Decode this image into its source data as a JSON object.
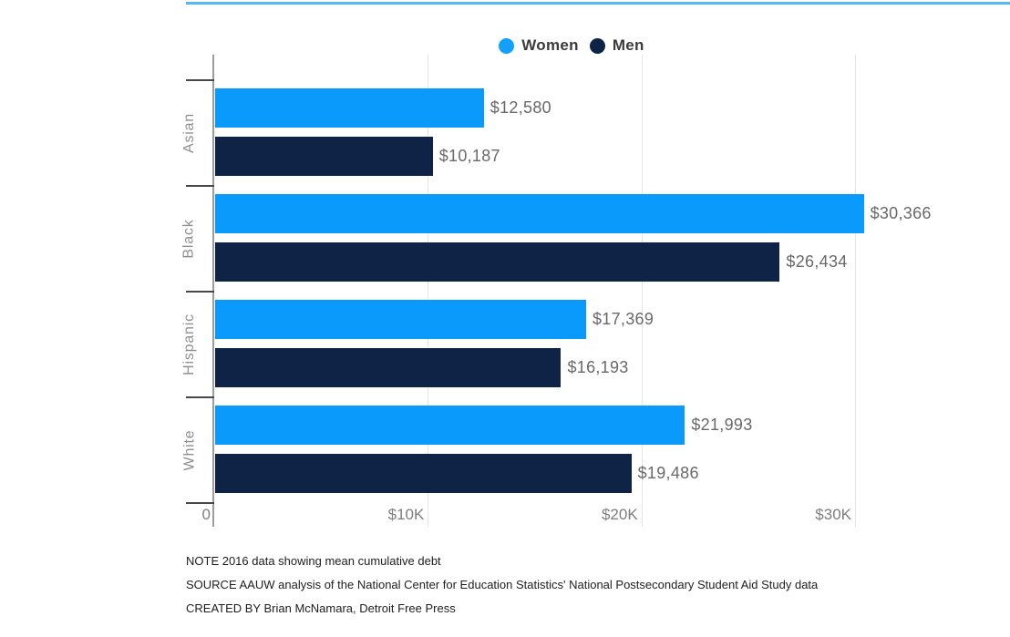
{
  "top_divider_color": "#57b6f7",
  "legend": {
    "items": [
      {
        "label": "Women",
        "color": "#12a0fb"
      },
      {
        "label": "Men",
        "color": "#0f2347"
      }
    ]
  },
  "chart_data": {
    "type": "bar",
    "orientation": "horizontal",
    "title": "",
    "categories": [
      "Asian",
      "Black",
      "Hispanic",
      "White"
    ],
    "series": [
      {
        "name": "Women",
        "color": "#0a9afc",
        "values": [
          12580,
          30366,
          17369,
          21993
        ],
        "labels": [
          "$12,580",
          "$30,366",
          "$17,369",
          "$21,993"
        ]
      },
      {
        "name": "Men",
        "color": "#0f2347",
        "values": [
          10187,
          26434,
          16193,
          19486
        ],
        "labels": [
          "$10,187",
          "$26,434",
          "$16,193",
          "$19,486"
        ]
      }
    ],
    "x_axis": {
      "max_value": 30000,
      "ticks": [
        {
          "value": 0,
          "label": "0"
        },
        {
          "value": 10000,
          "label": "$10K"
        },
        {
          "value": 20000,
          "label": "$20K"
        },
        {
          "value": 30000,
          "label": "$30K"
        }
      ]
    },
    "grid": "vertical",
    "legend_position": "top",
    "value_labels_shown": true
  },
  "footer": {
    "note": "NOTE 2016 data showing mean cumulative debt",
    "source": "SOURCE AAUW analysis of the National Center for Education Statistics' National Postsecondary Student Aid Study data",
    "created_by": "CREATED BY Brian McNamara, Detroit Free Press"
  }
}
